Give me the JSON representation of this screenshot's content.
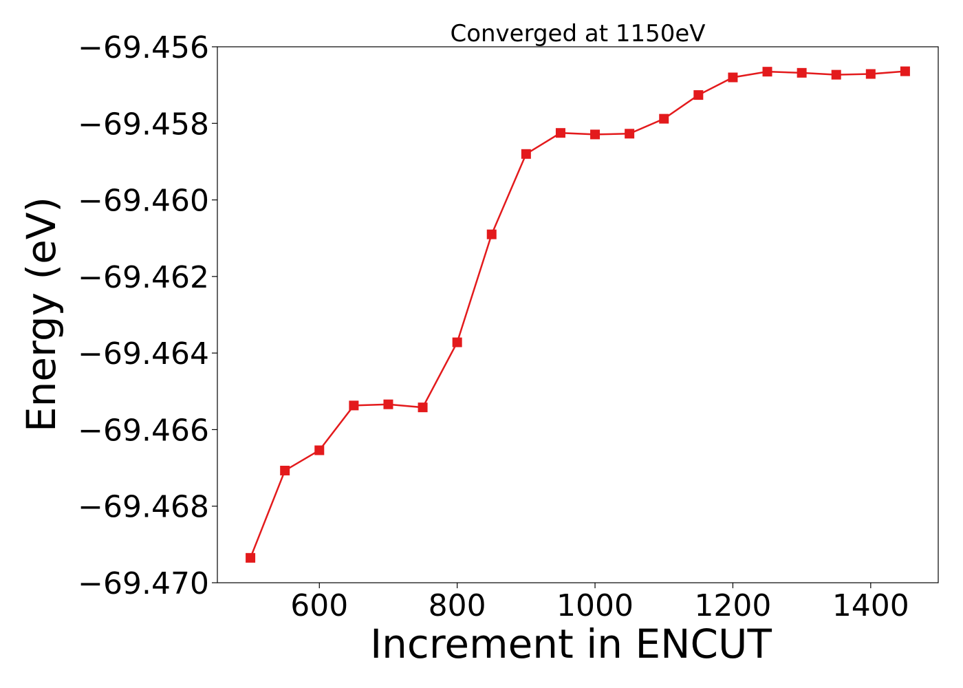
{
  "chart_data": {
    "type": "line",
    "title": "Converged at 1150eV",
    "xlabel": "Increment in ENCUT",
    "ylabel": "Energy (eV)",
    "xlim": [
      452,
      1498
    ],
    "ylim": [
      -69.47,
      -69.456
    ],
    "x_ticks": [
      600,
      800,
      1000,
      1200,
      1400
    ],
    "y_ticks": [
      -69.47,
      -69.468,
      -69.466,
      -69.464,
      -69.462,
      -69.46,
      -69.458,
      -69.456
    ],
    "y_tick_labels": [
      "−69.470",
      "−69.468",
      "−69.466",
      "−69.464",
      "−69.462",
      "−69.460",
      "−69.458",
      "−69.456"
    ],
    "x_tick_labels": [
      "600",
      "800",
      "1000",
      "1200",
      "1400"
    ],
    "grid": false,
    "series": [
      {
        "color": "#e31a1c",
        "marker": "square",
        "x": [
          500,
          550,
          600,
          650,
          700,
          750,
          800,
          850,
          900,
          950,
          1000,
          1050,
          1100,
          1150,
          1200,
          1250,
          1300,
          1350,
          1400,
          1450
        ],
        "y": [
          -69.46935,
          -69.46707,
          -69.46654,
          -69.46537,
          -69.46534,
          -69.46542,
          -69.46372,
          -69.4609,
          -69.4588,
          -69.45825,
          -69.45829,
          -69.45827,
          -69.45788,
          -69.45726,
          -69.4568,
          -69.45665,
          -69.45668,
          -69.45673,
          -69.45671,
          -69.45664
        ]
      }
    ]
  }
}
